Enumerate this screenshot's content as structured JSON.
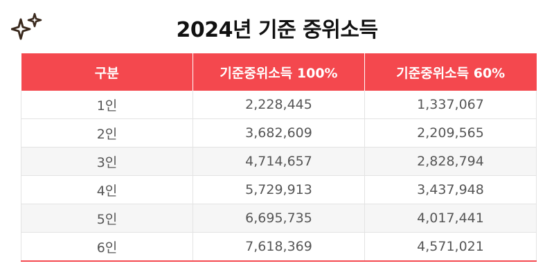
{
  "title": "2024년 기준 중위소득",
  "icon": "sparkle-icon",
  "colors": {
    "header_bg": "#f4484e",
    "header_text": "#ffffff",
    "stripe": "#f6f6f6",
    "cell_text": "#555555"
  },
  "table": {
    "headers": [
      "구분",
      "기준중위소득 100%",
      "기준중위소득 60%"
    ],
    "rows": [
      [
        "1인",
        "2,228,445",
        "1,337,067"
      ],
      [
        "2인",
        "3,682,609",
        "2,209,565"
      ],
      [
        "3인",
        "4,714,657",
        "2,828,794"
      ],
      [
        "4인",
        "5,729,913",
        "3,437,948"
      ],
      [
        "5인",
        "6,695,735",
        "4,017,441"
      ],
      [
        "6인",
        "7,618,369",
        "4,571,021"
      ]
    ]
  }
}
